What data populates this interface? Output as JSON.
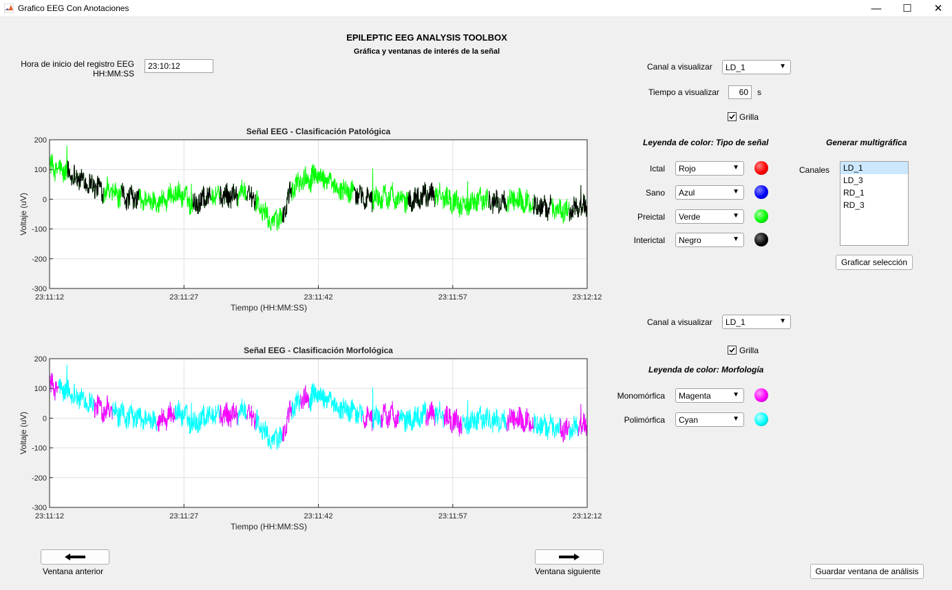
{
  "window": {
    "title": "Grafico EEG Con Anotaciones",
    "minimize": "—",
    "maximize": "☐",
    "close": "✕"
  },
  "header": {
    "title": "EPILEPTIC EEG ANALYSIS TOOLBOX",
    "subtitle": "Gráfica y ventanas de interés de la señal"
  },
  "start_time": {
    "label_line1": "Hora de inicio del registro EEG",
    "label_line2": "HH:MM:SS",
    "value": "23:10:12"
  },
  "controls_top": {
    "channel_label": "Canal a visualizar",
    "channel_value": "LD_1",
    "time_label": "Tiempo a visualizar",
    "time_value": "60",
    "time_unit": "s",
    "grid_label": "Grilla",
    "grid_checked": true
  },
  "legend_type": {
    "title": "Leyenda de color: Tipo de señal",
    "items": [
      {
        "label": "Ictal",
        "value": "Rojo",
        "color": "#ff0000"
      },
      {
        "label": "Sano",
        "value": "Azul",
        "color": "#0000ff"
      },
      {
        "label": "Preictal",
        "value": "Verde",
        "color": "#00ff00"
      },
      {
        "label": "Interictal",
        "value": "Negro",
        "color": "#000000"
      }
    ]
  },
  "multigraph": {
    "title": "Generar multigráfica",
    "channels_label": "Canales",
    "channels": [
      "LD_1",
      "LD_3",
      "RD_1",
      "RD_3"
    ],
    "selected": "LD_1",
    "button": "Graficar selección"
  },
  "controls_bottom": {
    "channel_label": "Canal a visualizar",
    "channel_value": "LD_1",
    "grid_label": "Grilla",
    "grid_checked": true
  },
  "legend_morph": {
    "title": "Leyenda de color: Morfología",
    "items": [
      {
        "label": "Monomórfica",
        "value": "Magenta",
        "color": "#ff00ff"
      },
      {
        "label": "Polimórfica",
        "value": "Cyan",
        "color": "#00ffff"
      }
    ]
  },
  "nav": {
    "prev_label": "Ventana anterior",
    "next_label": "Ventana siguiente",
    "save_button": "Guardar ventana de análisis"
  },
  "chart_data": [
    {
      "type": "line",
      "title": "Señal EEG - Clasificación Patológica",
      "xlabel": "Tiempo (HH:MM:SS)",
      "ylabel": "Voltaje (uV)",
      "x_ticks": [
        "23:11:12",
        "23:11:27",
        "23:11:42",
        "23:11:57",
        "23:12:12"
      ],
      "y_ticks": [
        200,
        100,
        0,
        -100,
        -200,
        -300
      ],
      "ylim": [
        -300,
        200
      ],
      "x_range_s": [
        0,
        60
      ],
      "grid": true,
      "series": [
        {
          "color": "#00ff00",
          "points": [
            [
              0,
              110
            ],
            [
              2,
              90
            ],
            [
              4,
              60
            ],
            [
              6,
              30
            ],
            [
              8,
              10
            ],
            [
              10,
              0
            ],
            [
              12,
              -10
            ],
            [
              13,
              0
            ],
            [
              14,
              20
            ],
            [
              15,
              10
            ],
            [
              16,
              -20
            ],
            [
              17,
              0
            ],
            [
              18,
              20
            ],
            [
              20,
              10
            ],
            [
              22,
              30
            ],
            [
              24,
              -50
            ],
            [
              25,
              -80
            ],
            [
              26,
              -60
            ],
            [
              27,
              30
            ],
            [
              28,
              60
            ],
            [
              30,
              80
            ],
            [
              32,
              40
            ],
            [
              34,
              20
            ],
            [
              36,
              0
            ],
            [
              38,
              10
            ],
            [
              40,
              -10
            ],
            [
              42,
              20
            ],
            [
              44,
              10
            ],
            [
              46,
              -20
            ],
            [
              48,
              0
            ],
            [
              50,
              -10
            ],
            [
              52,
              0
            ],
            [
              54,
              -20
            ],
            [
              56,
              -30
            ],
            [
              58,
              -40
            ],
            [
              60,
              -20
            ]
          ]
        },
        {
          "color": "#000000",
          "segments": [
            [
              2,
              6
            ],
            [
              8,
              10
            ],
            [
              16,
              18
            ],
            [
              19,
              21
            ],
            [
              22,
              23
            ],
            [
              26,
              27
            ],
            [
              34,
              36
            ],
            [
              40,
              43
            ],
            [
              49,
              51
            ],
            [
              54,
              56
            ],
            [
              58,
              60
            ]
          ]
        }
      ]
    },
    {
      "type": "line",
      "title": "Señal EEG - Clasificación Morfológica",
      "xlabel": "Tiempo (HH:MM:SS)",
      "ylabel": "Voltaje (uV)",
      "x_ticks": [
        "23:11:12",
        "23:11:27",
        "23:11:42",
        "23:11:57",
        "23:12:12"
      ],
      "y_ticks": [
        200,
        100,
        0,
        -100,
        -200,
        -300
      ],
      "ylim": [
        -300,
        200
      ],
      "x_range_s": [
        0,
        60
      ],
      "grid": true,
      "series": [
        {
          "color": "#00ffff",
          "points": [
            [
              0,
              110
            ],
            [
              2,
              90
            ],
            [
              4,
              60
            ],
            [
              6,
              30
            ],
            [
              8,
              10
            ],
            [
              10,
              0
            ],
            [
              12,
              -10
            ],
            [
              13,
              0
            ],
            [
              14,
              20
            ],
            [
              15,
              10
            ],
            [
              16,
              -20
            ],
            [
              17,
              0
            ],
            [
              18,
              20
            ],
            [
              20,
              10
            ],
            [
              22,
              30
            ],
            [
              24,
              -50
            ],
            [
              25,
              -80
            ],
            [
              26,
              -60
            ],
            [
              27,
              30
            ],
            [
              28,
              60
            ],
            [
              30,
              80
            ],
            [
              32,
              40
            ],
            [
              34,
              20
            ],
            [
              36,
              0
            ],
            [
              38,
              10
            ],
            [
              40,
              -10
            ],
            [
              42,
              20
            ],
            [
              44,
              10
            ],
            [
              46,
              -20
            ],
            [
              48,
              0
            ],
            [
              50,
              -10
            ],
            [
              52,
              0
            ],
            [
              54,
              -20
            ],
            [
              56,
              -30
            ],
            [
              58,
              -40
            ],
            [
              60,
              -20
            ]
          ]
        },
        {
          "color": "#ff00ff",
          "segments": [
            [
              0,
              1
            ],
            [
              5,
              7
            ],
            [
              12,
              14
            ],
            [
              19,
              21
            ],
            [
              22,
              23
            ],
            [
              26,
              27
            ],
            [
              28,
              29
            ],
            [
              35,
              36
            ],
            [
              37,
              39
            ],
            [
              42,
              43
            ],
            [
              44,
              46
            ],
            [
              51,
              54
            ],
            [
              57,
              58
            ],
            [
              59,
              60
            ]
          ]
        }
      ]
    }
  ]
}
